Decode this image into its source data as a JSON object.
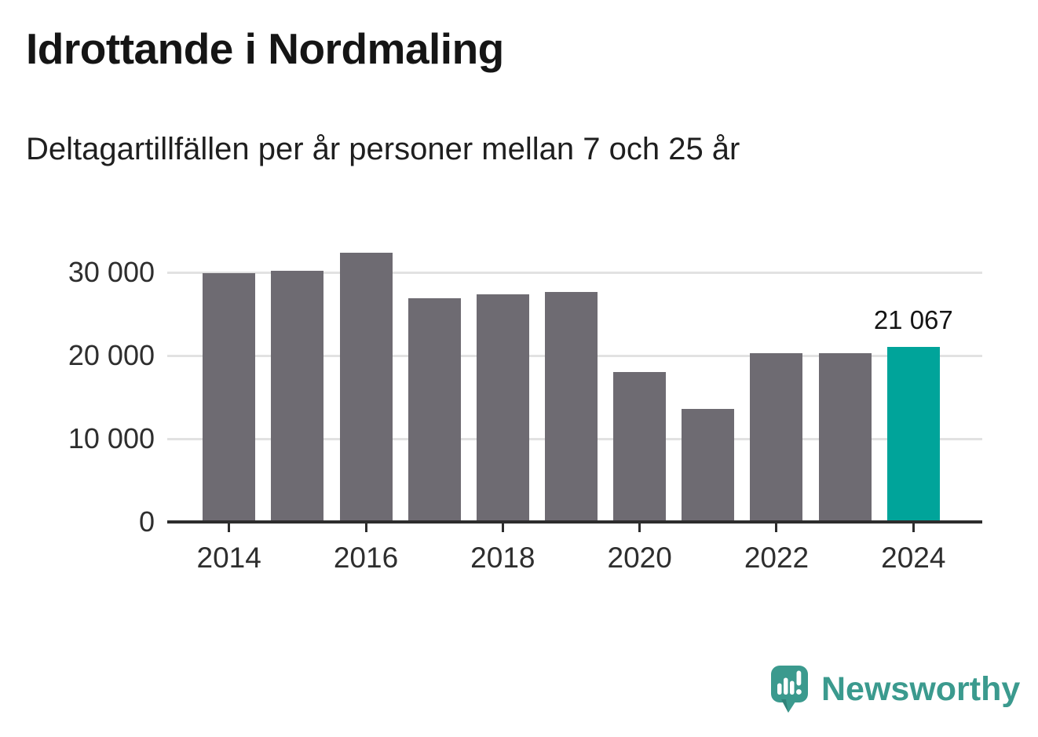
{
  "chart_data": {
    "type": "bar",
    "title": "Idrottande i Nordmaling",
    "subtitle": "Deltagartillfällen per år personer mellan 7 och 25 år",
    "categories": [
      "2014",
      "2015",
      "2016",
      "2017",
      "2018",
      "2019",
      "2020",
      "2021",
      "2022",
      "2023",
      "2024"
    ],
    "values": [
      29900,
      30200,
      32400,
      26900,
      27400,
      27600,
      18000,
      13600,
      20250,
      20250,
      21067
    ],
    "bar_color": "#6e6b72",
    "highlight": {
      "category": "2024",
      "index": 10,
      "value": 21067,
      "label": "21 067",
      "color": "#00a49a"
    },
    "ylim": [
      0,
      35000
    ],
    "yticks": {
      "values": [
        0,
        10000,
        20000,
        30000
      ],
      "labels": [
        "0",
        "10 000",
        "20 000",
        "30 000"
      ]
    },
    "xticks": [
      "2014",
      "2016",
      "2018",
      "2020",
      "2022",
      "2024"
    ],
    "grid": true,
    "gridline_color": "#e2e2e2",
    "axis_color": "#2d2d2d",
    "legend": "none"
  },
  "footer": {
    "brand": "Newsworthy",
    "brand_color": "#3b9a8e",
    "icon": "newsworthy-speech-bubble-chart-icon"
  }
}
